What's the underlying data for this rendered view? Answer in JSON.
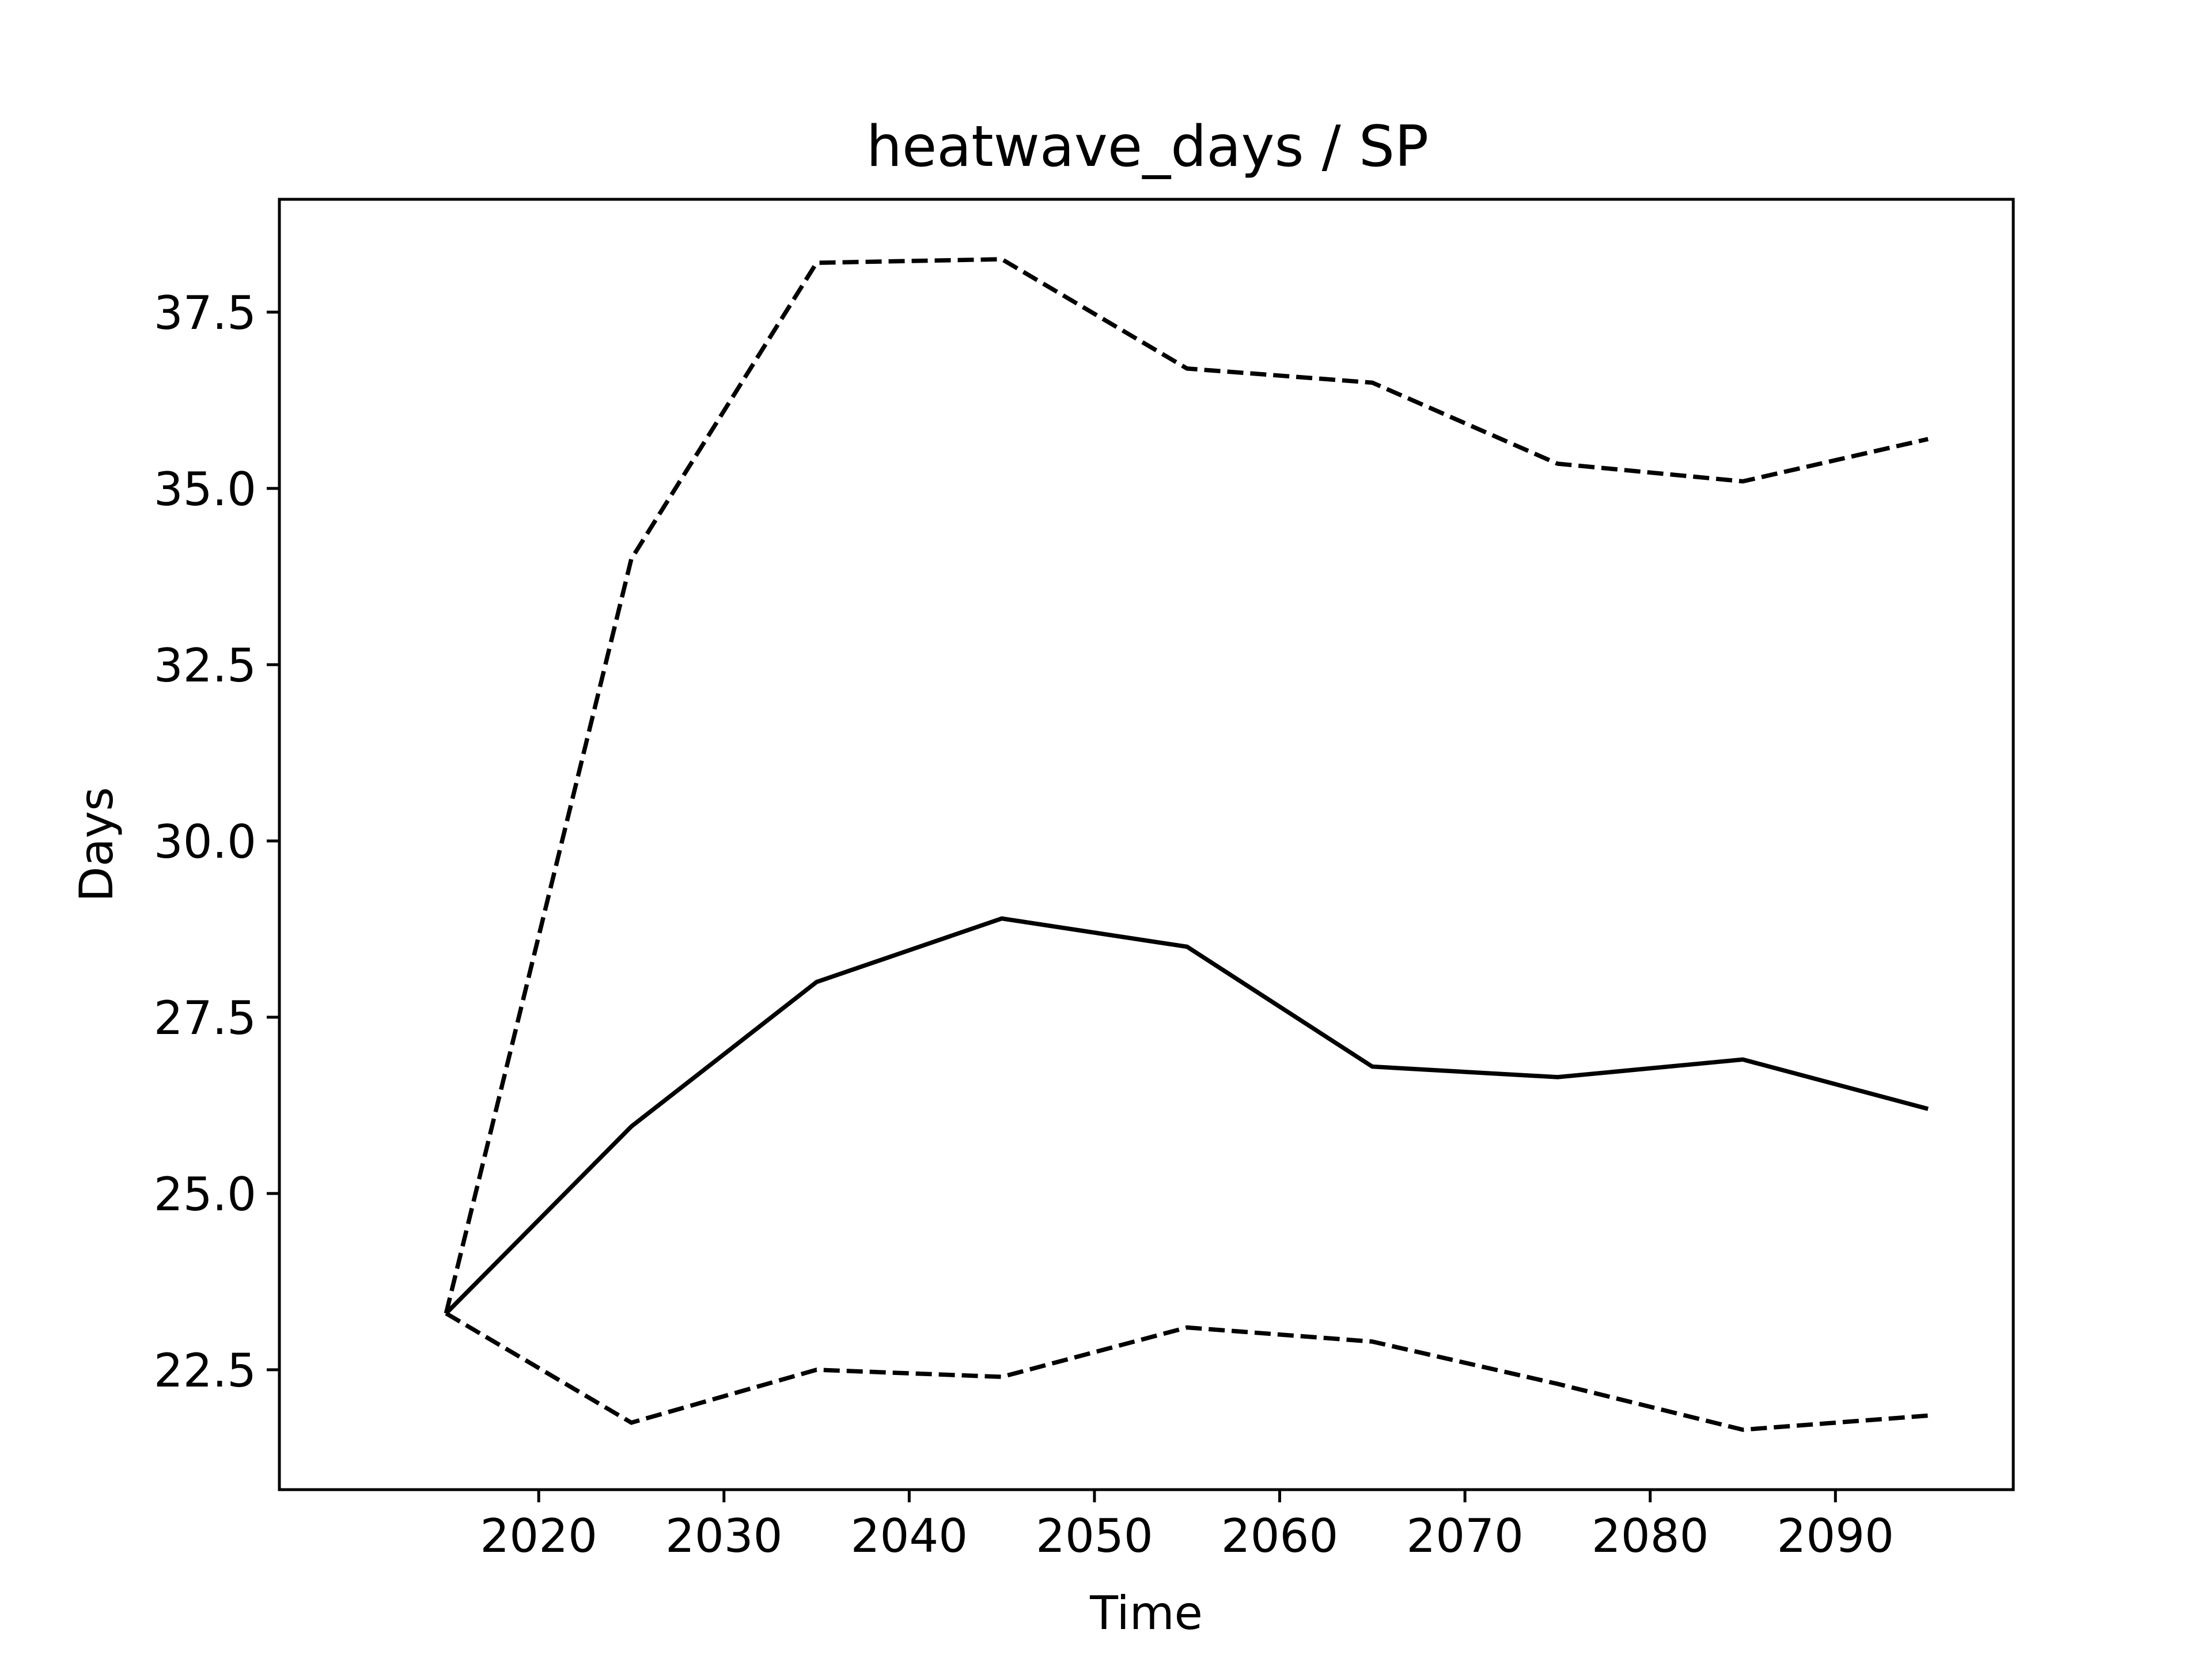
{
  "chart_data": {
    "type": "line",
    "title": "heatwave_days / SP",
    "xlabel": "Time",
    "ylabel": "Days",
    "x": [
      2015,
      2025,
      2035,
      2045,
      2055,
      2065,
      2075,
      2085,
      2095
    ],
    "xlim": [
      2006,
      2099.6
    ],
    "ylim": [
      20.8,
      39.1
    ],
    "xticks": [
      2020,
      2030,
      2040,
      2050,
      2060,
      2070,
      2080,
      2090
    ],
    "xtick_labels": [
      "2020",
      "2030",
      "2040",
      "2050",
      "2060",
      "2070",
      "2080",
      "2090"
    ],
    "yticks": [
      22.5,
      25.0,
      27.5,
      30.0,
      32.5,
      35.0,
      37.5
    ],
    "ytick_labels": [
      "22.5",
      "25.0",
      "27.5",
      "30.0",
      "32.5",
      "35.0",
      "37.5"
    ],
    "grid": false,
    "legend": false,
    "series": [
      {
        "style": "solid",
        "color": "#000000",
        "values": [
          23.3,
          25.95,
          28.0,
          28.9,
          28.5,
          26.8,
          26.65,
          26.9,
          26.2
        ]
      },
      {
        "style": "dashed",
        "color": "#000000",
        "values": [
          23.3,
          34.0,
          38.2,
          38.25,
          36.7,
          36.5,
          35.35,
          35.1,
          35.7
        ]
      },
      {
        "style": "dashed",
        "color": "#000000",
        "values": [
          23.3,
          21.75,
          22.5,
          22.4,
          23.1,
          22.9,
          22.3,
          21.65,
          21.85
        ]
      }
    ]
  }
}
